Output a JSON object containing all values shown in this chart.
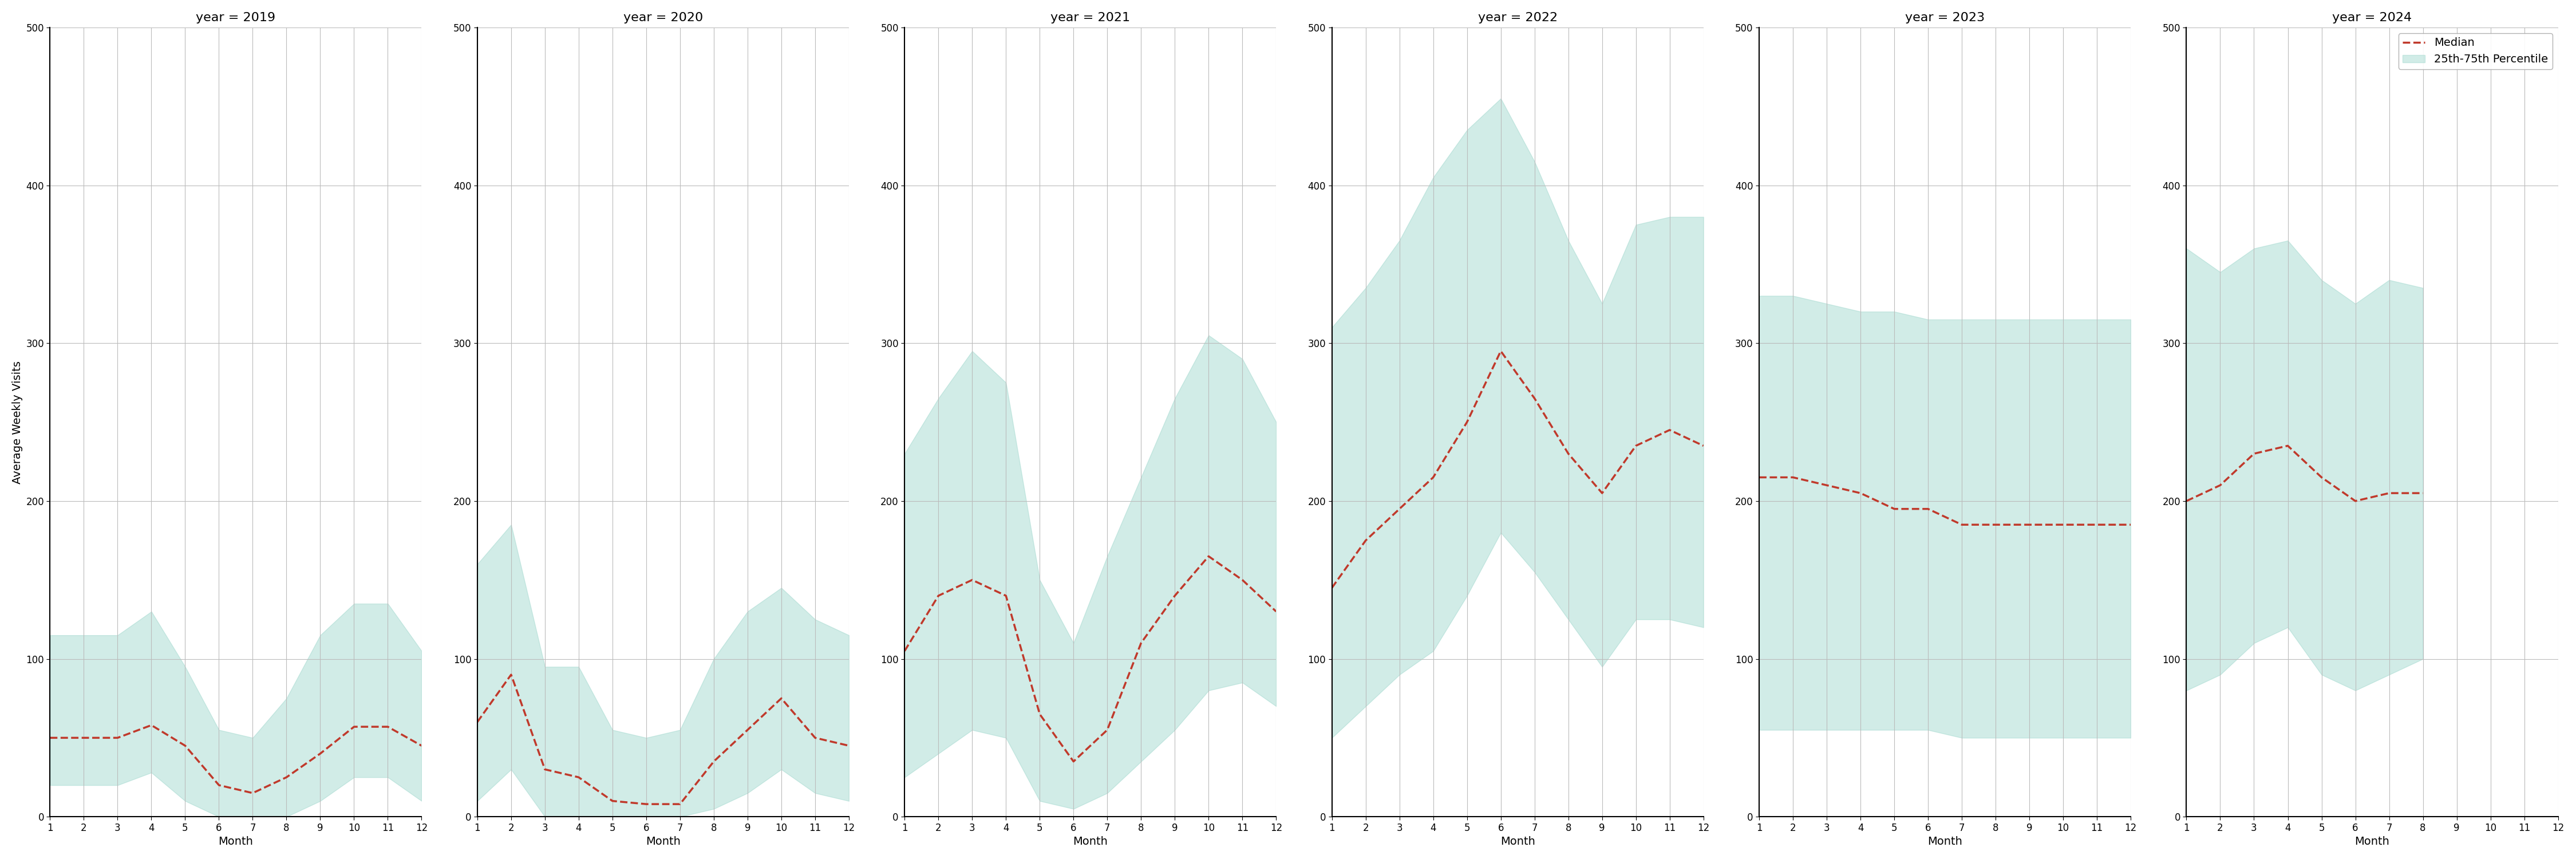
{
  "years": [
    2019,
    2020,
    2021,
    2022,
    2023,
    2024
  ],
  "months": [
    1,
    2,
    3,
    4,
    5,
    6,
    7,
    8,
    9,
    10,
    11,
    12
  ],
  "months_2024": [
    1,
    2,
    3,
    4,
    5,
    6,
    7,
    8
  ],
  "median": {
    "2019": [
      50,
      50,
      50,
      58,
      45,
      20,
      15,
      25,
      40,
      57,
      57,
      45
    ],
    "2020": [
      60,
      90,
      30,
      25,
      10,
      8,
      8,
      35,
      55,
      75,
      50,
      45
    ],
    "2021": [
      105,
      140,
      150,
      140,
      65,
      35,
      55,
      110,
      140,
      165,
      150,
      130
    ],
    "2022": [
      145,
      175,
      195,
      215,
      250,
      295,
      265,
      230,
      205,
      235,
      245,
      235
    ],
    "2023": [
      215,
      215,
      210,
      205,
      195,
      195,
      185,
      185,
      185,
      185,
      185,
      185
    ],
    "2024": [
      200,
      210,
      230,
      235,
      215,
      200,
      205,
      205,
      null,
      null,
      null,
      null
    ]
  },
  "q25": {
    "2019": [
      20,
      20,
      20,
      28,
      10,
      0,
      0,
      0,
      10,
      25,
      25,
      10
    ],
    "2020": [
      10,
      30,
      0,
      0,
      0,
      0,
      0,
      5,
      15,
      30,
      15,
      10
    ],
    "2021": [
      25,
      40,
      55,
      50,
      10,
      5,
      15,
      35,
      55,
      80,
      85,
      70
    ],
    "2022": [
      50,
      70,
      90,
      105,
      140,
      180,
      155,
      125,
      95,
      125,
      125,
      120
    ],
    "2023": [
      55,
      55,
      55,
      55,
      55,
      55,
      50,
      50,
      50,
      50,
      50,
      50
    ],
    "2024": [
      80,
      90,
      110,
      120,
      90,
      80,
      90,
      100,
      null,
      null,
      null,
      null
    ]
  },
  "q75": {
    "2019": [
      115,
      115,
      115,
      130,
      95,
      55,
      50,
      75,
      115,
      135,
      135,
      105
    ],
    "2020": [
      160,
      185,
      95,
      95,
      55,
      50,
      55,
      100,
      130,
      145,
      125,
      115
    ],
    "2021": [
      230,
      265,
      295,
      275,
      150,
      110,
      165,
      215,
      265,
      305,
      290,
      250
    ],
    "2022": [
      310,
      335,
      365,
      405,
      435,
      455,
      415,
      365,
      325,
      375,
      380,
      380
    ],
    "2023": [
      330,
      330,
      325,
      320,
      320,
      315,
      315,
      315,
      315,
      315,
      315,
      315
    ],
    "2024": [
      360,
      345,
      360,
      365,
      340,
      325,
      340,
      335,
      null,
      null,
      null,
      null
    ]
  },
  "ylim": [
    0,
    500
  ],
  "yticks": [
    0,
    100,
    200,
    300,
    400,
    500
  ],
  "ylabel": "Average Weekly Visits",
  "xlabel": "Month",
  "fill_color": "#99d5ca",
  "fill_alpha": 0.45,
  "line_color": "#c0392b",
  "line_style": "--",
  "line_width": 2.5,
  "legend_labels": [
    "Median",
    "25th-75th Percentile"
  ],
  "title_prefix": "year = ",
  "background_color": "white",
  "grid_color": "#bbbbbb",
  "title_fontsize": 16,
  "label_fontsize": 14,
  "tick_fontsize": 12
}
